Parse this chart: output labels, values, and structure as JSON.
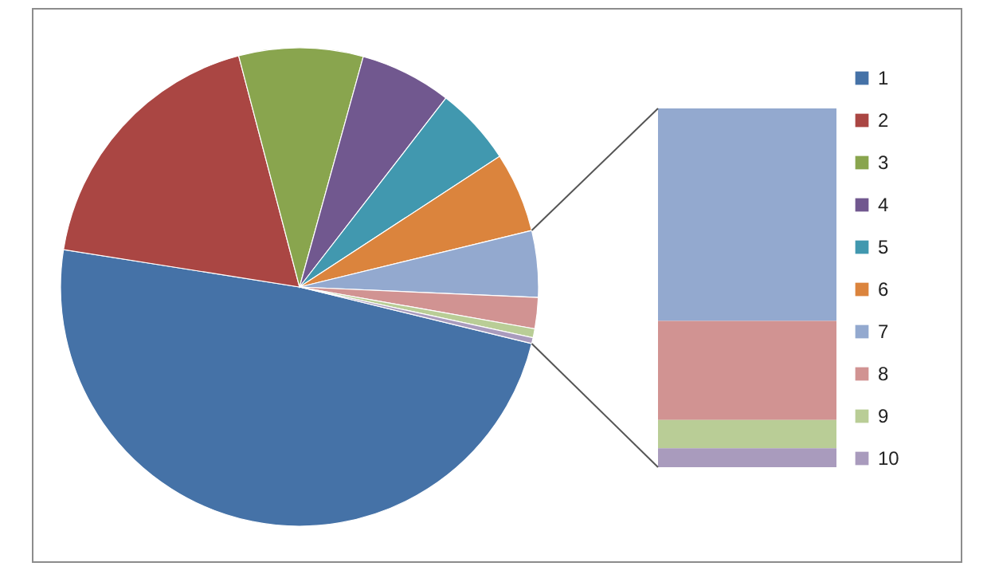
{
  "chart_data": {
    "type": "pie",
    "categories": [
      "1",
      "2",
      "3",
      "4",
      "5",
      "6",
      "7",
      "8",
      "9",
      "10"
    ],
    "values": [
      48.7,
      18.4,
      8.4,
      6.2,
      5.3,
      5.4,
      4.5,
      2.1,
      0.6,
      0.4
    ],
    "colors": [
      "#4572a7",
      "#aa4643",
      "#89a54e",
      "#71588f",
      "#4198af",
      "#db843d",
      "#93a9cf",
      "#d19392",
      "#b9cd96",
      "#a99bbd"
    ],
    "legend": "right"
  }
}
